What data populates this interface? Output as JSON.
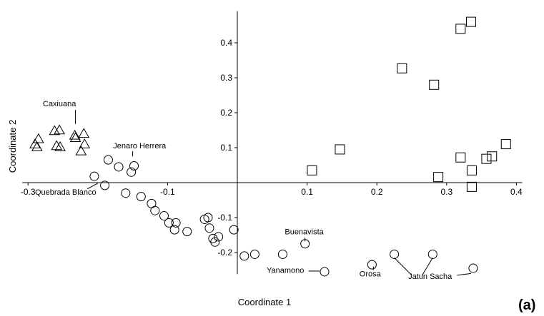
{
  "chart_data": {
    "type": "scatter",
    "panel_label": "(a)",
    "xlabel": "Coordinate 1",
    "ylabel": "Coordinate 2",
    "xlim": [
      -0.3,
      0.4
    ],
    "ylim": [
      -0.27,
      0.47
    ],
    "x_ticks": [
      -0.3,
      -0.1,
      0.1,
      0.2,
      0.3,
      0.4
    ],
    "x_tick_labels": [
      "-0.3",
      "-0.1",
      "0.1",
      "0.2",
      "0.3",
      "0.4"
    ],
    "y_ticks": [
      -0.2,
      -0.1,
      0.1,
      0.2,
      0.3,
      0.4
    ],
    "y_tick_labels": [
      "-0.2",
      "-0.1",
      "0.1",
      "0.2",
      "0.3",
      "0.4"
    ],
    "grid": false,
    "series": [
      {
        "marker": "triangle",
        "points": [
          [
            -0.29,
            0.11
          ],
          [
            -0.285,
            0.125
          ],
          [
            -0.287,
            0.102
          ],
          [
            -0.262,
            0.148
          ],
          [
            -0.255,
            0.15
          ],
          [
            -0.259,
            0.105
          ],
          [
            -0.254,
            0.102
          ],
          [
            -0.233,
            0.135
          ],
          [
            -0.232,
            0.128
          ],
          [
            -0.22,
            0.14
          ],
          [
            -0.219,
            0.11
          ],
          [
            -0.224,
            0.09
          ]
        ]
      },
      {
        "marker": "square",
        "points": [
          [
            0.107,
            0.035
          ],
          [
            0.147,
            0.095
          ],
          [
            0.236,
            0.327
          ],
          [
            0.282,
            0.28
          ],
          [
            0.32,
            0.44
          ],
          [
            0.335,
            0.46
          ],
          [
            0.32,
            0.072
          ],
          [
            0.288,
            0.016
          ],
          [
            0.336,
            0.035
          ],
          [
            0.357,
            0.068
          ],
          [
            0.365,
            0.075
          ],
          [
            0.385,
            0.11
          ],
          [
            0.336,
            -0.012
          ]
        ]
      },
      {
        "marker": "circle",
        "points": [
          [
            -0.185,
            0.065
          ],
          [
            -0.17,
            0.045
          ],
          [
            -0.148,
            0.048
          ],
          [
            -0.152,
            0.03
          ],
          [
            -0.205,
            0.018
          ],
          [
            -0.19,
            -0.008
          ],
          [
            -0.16,
            -0.03
          ],
          [
            -0.138,
            -0.04
          ],
          [
            -0.123,
            -0.06
          ],
          [
            -0.118,
            -0.08
          ],
          [
            -0.105,
            -0.095
          ],
          [
            -0.098,
            -0.115
          ],
          [
            -0.09,
            -0.135
          ],
          [
            -0.088,
            -0.115
          ],
          [
            -0.072,
            -0.14
          ],
          [
            -0.047,
            -0.105
          ],
          [
            -0.042,
            -0.1
          ],
          [
            -0.04,
            -0.13
          ],
          [
            -0.035,
            -0.16
          ],
          [
            -0.032,
            -0.17
          ],
          [
            -0.027,
            -0.155
          ],
          [
            -0.005,
            -0.135
          ],
          [
            0.01,
            -0.21
          ],
          [
            0.025,
            -0.205
          ],
          [
            0.065,
            -0.205
          ],
          [
            0.097,
            -0.175
          ],
          [
            0.125,
            -0.255
          ],
          [
            0.193,
            -0.235
          ],
          [
            0.225,
            -0.205
          ],
          [
            0.28,
            -0.205
          ],
          [
            0.338,
            -0.245
          ]
        ]
      }
    ],
    "annotations": [
      {
        "text": "Caxiuana",
        "x": -0.255,
        "y": 0.218,
        "anchor": "middle",
        "leader": [
          [
            -0.232,
            0.208
          ],
          [
            -0.232,
            0.168
          ]
        ]
      },
      {
        "text": "Jenaro Herrera",
        "x": -0.178,
        "y": 0.098,
        "anchor": "start",
        "leader": [
          [
            -0.15,
            0.09
          ],
          [
            -0.15,
            0.075
          ]
        ]
      },
      {
        "text": "Quebrada Blanco",
        "x": -0.29,
        "y": -0.035,
        "anchor": "start",
        "leader": [
          [
            -0.215,
            -0.018
          ],
          [
            -0.2,
            -0.002
          ]
        ]
      },
      {
        "text": "Buenavista",
        "x": 0.068,
        "y": -0.148,
        "anchor": "start",
        "leader": [
          [
            0.097,
            -0.158
          ],
          [
            0.097,
            -0.168
          ]
        ]
      },
      {
        "text": "Yanamono",
        "x": 0.042,
        "y": -0.258,
        "anchor": "start",
        "leader": [
          [
            0.102,
            -0.253
          ],
          [
            0.118,
            -0.253
          ]
        ]
      },
      {
        "text": "Orosa",
        "x": 0.175,
        "y": -0.268,
        "anchor": "start",
        "leader": [
          [
            0.195,
            -0.25
          ],
          [
            0.195,
            -0.24
          ]
        ]
      },
      {
        "text": "Jatun Sacha",
        "x": 0.245,
        "y": -0.275,
        "anchor": "start",
        "leader": [
          [
            0.225,
            -0.215
          ],
          [
            0.25,
            -0.265
          ],
          [
            0.28,
            -0.215
          ],
          [
            0.265,
            -0.265
          ],
          [
            0.335,
            -0.26
          ],
          [
            0.315,
            -0.265
          ]
        ]
      }
    ]
  }
}
